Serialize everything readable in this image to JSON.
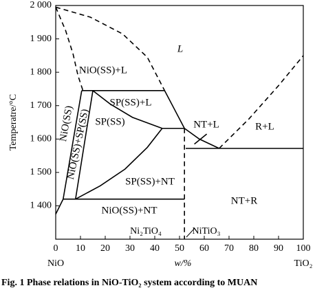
{
  "chart_data": {
    "type": "phase-diagram",
    "y_label": "Temperatre/°C",
    "x_label": "w/%",
    "x_left_label": "NiO",
    "x_right_label": "TiO₂",
    "compounds": [
      "Ni₂TiO₄",
      "NiTiO₃"
    ],
    "caption": "Fig. 1 Phase relations in NiO-TiO₂ system according to MUAN",
    "xlim": [
      0,
      100
    ],
    "ylim": [
      1300,
      2000
    ],
    "xticks": [
      0,
      10,
      20,
      30,
      40,
      50,
      60,
      70,
      80,
      90,
      100
    ],
    "yticks": [
      {
        "value": 1400,
        "label": "1 400"
      },
      {
        "value": 1500,
        "label": "1 500"
      },
      {
        "value": 1600,
        "label": "1 600"
      },
      {
        "value": 1700,
        "label": "1 700"
      },
      {
        "value": 1800,
        "label": "1 800"
      },
      {
        "value": 1900,
        "label": "1 900"
      },
      {
        "value": 2000,
        "label": "2 000"
      }
    ],
    "color": "#000000",
    "boundaries": [
      {
        "dashed": true,
        "x": [
          0,
          4,
          7,
          9,
          11
        ],
        "y": [
          1995,
          1925,
          1855,
          1790,
          1745
        ]
      },
      {
        "dashed": true,
        "x": [
          0,
          14,
          27,
          37,
          44
        ],
        "y": [
          1995,
          1965,
          1915,
          1845,
          1745
        ]
      },
      {
        "dashed": false,
        "x": [
          10.5,
          44
        ],
        "y": [
          1745,
          1745
        ]
      },
      {
        "dashed": false,
        "x": [
          44,
          52
        ],
        "y": [
          1745,
          1632
        ]
      },
      {
        "dashed": false,
        "x": [
          15,
          22,
          31,
          43
        ],
        "y": [
          1745,
          1705,
          1665,
          1632
        ]
      },
      {
        "dashed": false,
        "x": [
          15,
          8
        ],
        "y": [
          1745,
          1420
        ]
      },
      {
        "dashed": false,
        "x": [
          43,
          52
        ],
        "y": [
          1632,
          1632
        ]
      },
      {
        "dashed": false,
        "x": [
          43,
          37,
          28,
          18,
          8
        ],
        "y": [
          1632,
          1575,
          1510,
          1460,
          1420
        ]
      },
      {
        "dashed": false,
        "x": [
          3,
          52
        ],
        "y": [
          1420,
          1420
        ]
      },
      {
        "dashed": true,
        "x": [
          52,
          52
        ],
        "y": [
          1632,
          1300
        ]
      },
      {
        "dashed": false,
        "x": [
          0,
          3,
          10.5
        ],
        "y": [
          1375,
          1420,
          1745
        ]
      },
      {
        "dashed": false,
        "x": [
          52,
          58,
          66
        ],
        "y": [
          1632,
          1600,
          1572
        ]
      },
      {
        "dashed": true,
        "x": [
          66,
          78,
          90,
          100
        ],
        "y": [
          1572,
          1660,
          1760,
          1850
        ]
      },
      {
        "dashed": false,
        "x": [
          52.5,
          100
        ],
        "y": [
          1572,
          1572
        ]
      },
      {
        "dashed": false,
        "x": [
          56,
          61
        ],
        "y": [
          1585,
          1615
        ]
      }
    ],
    "annotations": [
      "L",
      "NiO(SS)+L",
      "SP(SS)+L",
      "NiO(SS)",
      "NiO(SS)+SP(SS)",
      "SP(SS)",
      "SP(SS)+NT",
      "NiO(SS)+NT",
      "NT+L",
      "R+L",
      "NT+R"
    ]
  }
}
